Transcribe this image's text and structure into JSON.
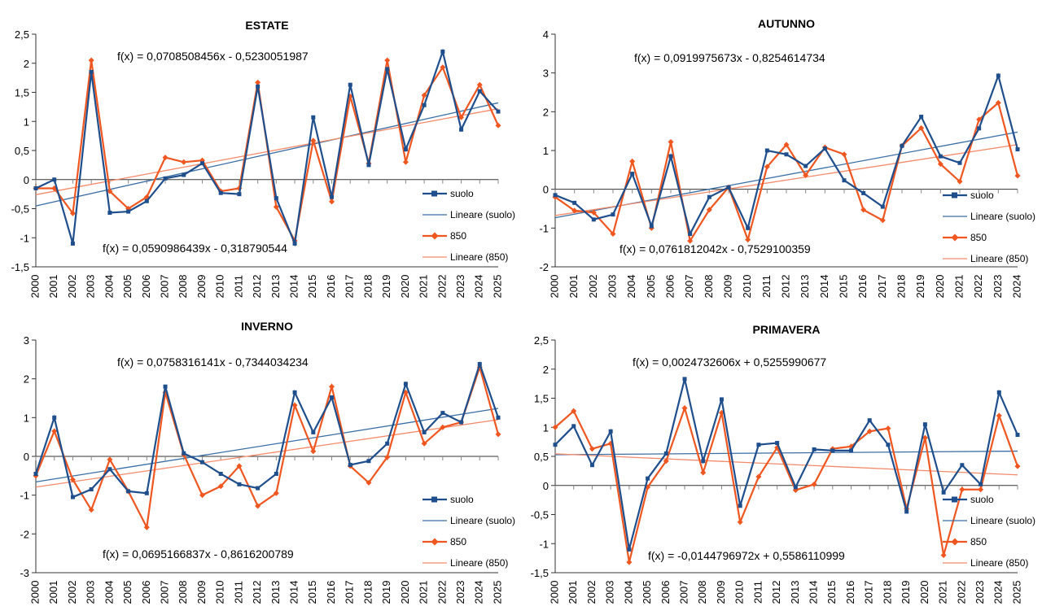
{
  "colors": {
    "suolo": "#1f4e8c",
    "s850": "#f0561f",
    "trend_suolo": "#3a6ea5",
    "trend_850": "#f58a6a",
    "axis": "#333333",
    "grid_tick": "#888888"
  },
  "chart_data": [
    {
      "type": "line",
      "title": "ESTATE",
      "x": [
        "2000",
        "2001",
        "2002",
        "2003",
        "2004",
        "2005",
        "2006",
        "2007",
        "2008",
        "2009",
        "2010",
        "2011",
        "2012",
        "2013",
        "2014",
        "2015",
        "2016",
        "2017",
        "2018",
        "2019",
        "2020",
        "2021",
        "2022",
        "2023",
        "2024",
        "2025"
      ],
      "ylim": [
        -1.5,
        2.5
      ],
      "yticks": [
        -1.5,
        -1,
        -0.5,
        0,
        0.5,
        1,
        1.5,
        2,
        2.5
      ],
      "ytick_labels": [
        "-1,5",
        "-1",
        "-0,5",
        "0",
        "0,5",
        "1",
        "1,5",
        "2",
        "2,5"
      ],
      "series": [
        {
          "name": "suolo",
          "values": [
            -0.15,
            0.0,
            -1.1,
            1.85,
            -0.57,
            -0.55,
            -0.37,
            0.02,
            0.08,
            0.28,
            -0.23,
            -0.25,
            1.6,
            -0.32,
            -1.1,
            1.07,
            -0.3,
            1.63,
            0.25,
            1.9,
            0.52,
            1.28,
            2.2,
            0.86,
            1.52,
            1.17
          ]
        },
        {
          "name": "850",
          "values": [
            -0.15,
            -0.15,
            -0.58,
            2.05,
            -0.2,
            -0.5,
            -0.3,
            0.38,
            0.3,
            0.33,
            -0.2,
            -0.15,
            1.67,
            -0.47,
            -1.05,
            0.67,
            -0.38,
            1.43,
            0.28,
            2.05,
            0.3,
            1.45,
            1.93,
            1.07,
            1.63,
            0.93
          ]
        }
      ],
      "trend_suolo": {
        "slope": 0.0708508456,
        "intercept": -0.5230051987
      },
      "trend_850": {
        "slope": 0.0590986439,
        "intercept": -0.318790544
      },
      "eq_suolo": "f(x) = 0,0708508456x - 0,5230051987",
      "eq_850": "f(x) = 0,0590986439x - 0,318790544",
      "legend": [
        "suolo",
        "Lineare (suolo)",
        "850",
        "Lineare (850)"
      ],
      "legend_position": "right"
    },
    {
      "type": "line",
      "title": "AUTUNNO",
      "x": [
        "2000",
        "2001",
        "2002",
        "2003",
        "2004",
        "2005",
        "2006",
        "2007",
        "2008",
        "2009",
        "2010",
        "2011",
        "2012",
        "2013",
        "2014",
        "2015",
        "2016",
        "2017",
        "2018",
        "2019",
        "2020",
        "2021",
        "2022",
        "2023",
        "2024"
      ],
      "ylim": [
        -2,
        4
      ],
      "yticks": [
        -2,
        -1,
        0,
        1,
        2,
        3,
        4
      ],
      "ytick_labels": [
        "-2",
        "-1",
        "0",
        "1",
        "2",
        "3",
        "4"
      ],
      "series": [
        {
          "name": "suolo",
          "values": [
            -0.15,
            -0.35,
            -0.78,
            -0.65,
            0.4,
            -0.95,
            0.85,
            -1.15,
            -0.2,
            0.05,
            -1.0,
            1.0,
            0.9,
            0.6,
            1.05,
            0.23,
            -0.1,
            -0.45,
            1.12,
            1.87,
            0.85,
            0.68,
            1.57,
            2.93,
            1.03
          ]
        },
        {
          "name": "850",
          "values": [
            -0.2,
            -0.55,
            -0.6,
            -1.15,
            0.72,
            -1.0,
            1.22,
            -1.33,
            -0.53,
            0.05,
            -1.3,
            0.58,
            1.15,
            0.36,
            1.08,
            0.9,
            -0.53,
            -0.8,
            1.12,
            1.58,
            0.65,
            0.2,
            1.8,
            2.23,
            0.35
          ]
        }
      ],
      "trend_suolo": {
        "slope": 0.0919975673,
        "intercept": -0.8254614734
      },
      "trend_850": {
        "slope": 0.0761812042,
        "intercept": -0.7529100359
      },
      "eq_suolo": "f(x) = 0,0919975673x - 0,8254614734",
      "eq_850": "f(x) = 0,0761812042x - 0,7529100359",
      "legend": [
        "suolo",
        "Lineare (suolo)",
        "850",
        "Lineare (850)"
      ],
      "legend_position": "right"
    },
    {
      "type": "line",
      "title": "INVERNO",
      "x": [
        "2000",
        "2001",
        "2002",
        "2003",
        "2004",
        "2005",
        "2006",
        "2007",
        "2008",
        "2009",
        "2010",
        "2011",
        "2012",
        "2013",
        "2014",
        "2015",
        "2016",
        "2017",
        "2018",
        "2019",
        "2020",
        "2021",
        "2022",
        "2023",
        "2024",
        "2025"
      ],
      "ylim": [
        -3,
        3
      ],
      "yticks": [
        -3,
        -2,
        -1,
        0,
        1,
        2,
        3
      ],
      "ytick_labels": [
        "-3",
        "-2",
        "-1",
        "0",
        "1",
        "2",
        "3"
      ],
      "series": [
        {
          "name": "suolo",
          "values": [
            -0.45,
            1.0,
            -1.05,
            -0.85,
            -0.33,
            -0.9,
            -0.95,
            1.8,
            0.08,
            -0.15,
            -0.45,
            -0.72,
            -0.82,
            -0.45,
            1.65,
            0.62,
            1.52,
            -0.22,
            -0.12,
            0.33,
            1.87,
            0.62,
            1.12,
            0.88,
            2.38,
            1.0
          ]
        },
        {
          "name": "850",
          "values": [
            -0.5,
            0.65,
            -0.6,
            -1.38,
            -0.08,
            -0.9,
            -1.83,
            1.65,
            0.05,
            -1.0,
            -0.77,
            -0.25,
            -1.28,
            -0.95,
            1.32,
            0.13,
            1.8,
            -0.25,
            -0.68,
            -0.02,
            1.65,
            0.33,
            0.75,
            0.88,
            2.3,
            0.57
          ]
        }
      ],
      "trend_suolo": {
        "slope": 0.0758316141,
        "intercept": -0.7344034234
      },
      "trend_850": {
        "slope": 0.0695166837,
        "intercept": -0.8616200789
      },
      "eq_suolo": "f(x) = 0,0758316141x - 0,7344034234",
      "eq_850": "f(x) = 0,0695166837x - 0,8616200789",
      "legend": [
        "suolo",
        "Lineare (suolo)",
        "850",
        "Lineare (850)"
      ],
      "legend_position": "right"
    },
    {
      "type": "line",
      "title": "PRIMAVERA",
      "x": [
        "2000",
        "2001",
        "2002",
        "2003",
        "2004",
        "2005",
        "2006",
        "2007",
        "2008",
        "2009",
        "2010",
        "2011",
        "2012",
        "2013",
        "2014",
        "2015",
        "2016",
        "2017",
        "2018",
        "2019",
        "2020",
        "2021",
        "2022",
        "2023",
        "2024",
        "2025"
      ],
      "ylim": [
        -1.5,
        2.5
      ],
      "yticks": [
        -1.5,
        -1,
        -0.5,
        0,
        0.5,
        1,
        1.5,
        2,
        2.5
      ],
      "ytick_labels": [
        "-1,5",
        "-1",
        "-0,5",
        "0",
        "0,5",
        "1",
        "1,5",
        "2",
        "2,5"
      ],
      "series": [
        {
          "name": "suolo",
          "values": [
            0.7,
            1.02,
            0.35,
            0.93,
            -1.1,
            0.12,
            0.55,
            1.83,
            0.42,
            1.48,
            -0.35,
            0.7,
            0.73,
            -0.03,
            0.62,
            0.6,
            0.6,
            1.12,
            0.7,
            -0.45,
            1.05,
            -0.12,
            0.35,
            0.02,
            1.6,
            0.87
          ]
        },
        {
          "name": "850",
          "values": [
            1.0,
            1.28,
            0.63,
            0.72,
            -1.32,
            -0.03,
            0.42,
            1.33,
            0.22,
            1.25,
            -0.63,
            0.15,
            0.65,
            -0.08,
            0.02,
            0.63,
            0.67,
            0.93,
            0.98,
            -0.4,
            0.82,
            -1.2,
            -0.07,
            -0.07,
            1.2,
            0.33
          ]
        }
      ],
      "trend_suolo": {
        "slope": 0.0024732606,
        "intercept": 0.5255990677
      },
      "trend_850": {
        "slope": -0.0144796972,
        "intercept": 0.5586110999
      },
      "eq_suolo": "f(x) = 0,0024732606x + 0,5255990677",
      "eq_850": "f(x) = -0,0144796972x + 0,5586110999",
      "legend": [
        "suolo",
        "Lineare (suolo)",
        "850",
        "Lineare (850)"
      ],
      "legend_position": "right"
    }
  ]
}
